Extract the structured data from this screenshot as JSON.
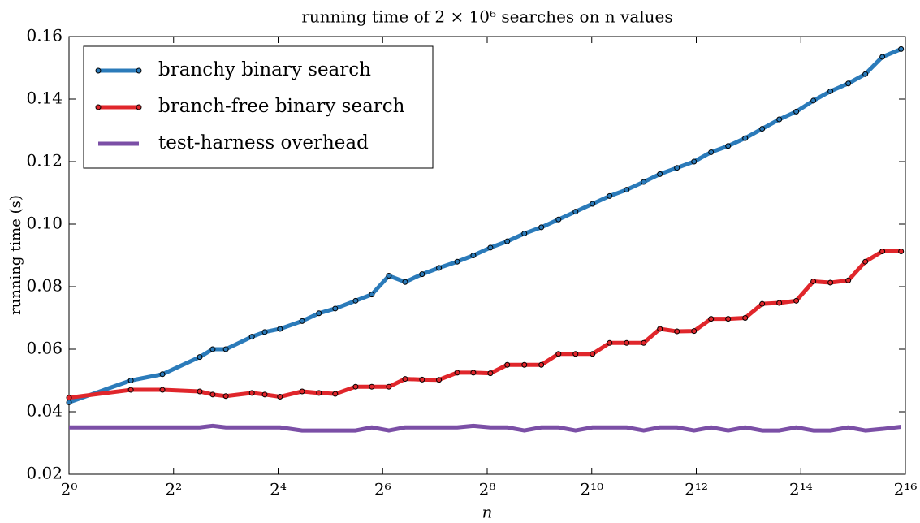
{
  "chart_data": {
    "type": "line",
    "title": "running time of 2 × 10⁶ searches on n values",
    "xlabel": "n",
    "ylabel": "running time (s)",
    "xscale": "log2",
    "x": [
      1,
      2.27,
      3.45,
      5.66,
      6.72,
      8,
      11.3,
      13.4,
      16.4,
      22,
      27.5,
      34.1,
      44.7,
      55.4,
      69.5,
      86.2,
      108,
      135,
      172,
      213,
      267,
      334,
      419,
      525,
      659,
      826,
      1035,
      1298,
      1627,
      2040,
      2528,
      3170,
      3975,
      4983,
      6246,
      7832,
      9816,
      12305,
      15425,
      19338,
      24238,
      30730,
      38520,
      48290,
      61900
    ],
    "series": [
      {
        "name": "branchy binary search",
        "color": "#2b7bba",
        "marker": true,
        "values": [
          0.043,
          0.05,
          0.052,
          0.0575,
          0.06,
          0.06,
          0.064,
          0.0655,
          0.0665,
          0.069,
          0.0715,
          0.073,
          0.0755,
          0.0775,
          0.0835,
          0.0815,
          0.084,
          0.086,
          0.088,
          0.09,
          0.0925,
          0.0945,
          0.097,
          0.099,
          0.1015,
          0.104,
          0.1065,
          0.109,
          0.111,
          0.1135,
          0.116,
          0.118,
          0.12,
          0.123,
          0.125,
          0.1275,
          0.1305,
          0.1335,
          0.136,
          0.1395,
          0.1425,
          0.145,
          0.148,
          0.1535,
          0.156
        ]
      },
      {
        "name": "branch-free binary search",
        "color": "#e0262b",
        "marker": true,
        "values": [
          0.0445,
          0.047,
          0.047,
          0.0465,
          0.0455,
          0.045,
          0.046,
          0.0455,
          0.0448,
          0.0465,
          0.046,
          0.0457,
          0.048,
          0.048,
          0.048,
          0.0505,
          0.0503,
          0.0502,
          0.0525,
          0.0525,
          0.0523,
          0.055,
          0.055,
          0.055,
          0.0585,
          0.0585,
          0.0585,
          0.062,
          0.062,
          0.062,
          0.0665,
          0.0657,
          0.0658,
          0.0697,
          0.0697,
          0.07,
          0.0745,
          0.0748,
          0.0755,
          0.0817,
          0.0813,
          0.082,
          0.088,
          0.0913,
          0.0913
        ]
      },
      {
        "name": "test-harness overhead",
        "color": "#7b4fa6",
        "marker": false,
        "values": [
          0.035,
          0.035,
          0.035,
          0.035,
          0.0355,
          0.035,
          0.035,
          0.035,
          0.035,
          0.034,
          0.034,
          0.034,
          0.034,
          0.035,
          0.034,
          0.035,
          0.035,
          0.035,
          0.035,
          0.0355,
          0.035,
          0.035,
          0.034,
          0.035,
          0.035,
          0.034,
          0.035,
          0.035,
          0.035,
          0.034,
          0.035,
          0.035,
          0.034,
          0.035,
          0.034,
          0.035,
          0.034,
          0.034,
          0.035,
          0.034,
          0.034,
          0.035,
          0.034,
          0.0345,
          0.0352
        ]
      }
    ],
    "xlim": [
      1,
      65536
    ],
    "xticks": [
      {
        "value": 1,
        "label": "2⁰"
      },
      {
        "value": 4,
        "label": "2²"
      },
      {
        "value": 16,
        "label": "2⁴"
      },
      {
        "value": 64,
        "label": "2⁶"
      },
      {
        "value": 256,
        "label": "2⁸"
      },
      {
        "value": 1024,
        "label": "2¹⁰"
      },
      {
        "value": 4096,
        "label": "2¹²"
      },
      {
        "value": 16384,
        "label": "2¹⁴"
      },
      {
        "value": 65536,
        "label": "2¹⁶"
      }
    ],
    "ylim": [
      0.02,
      0.16
    ],
    "yticks": [
      0.02,
      0.04,
      0.06,
      0.08,
      {
        "value": 0.1,
        "label": "0.10"
      },
      0.12,
      0.14,
      0.16
    ],
    "grid": false,
    "legend": "upper left"
  }
}
